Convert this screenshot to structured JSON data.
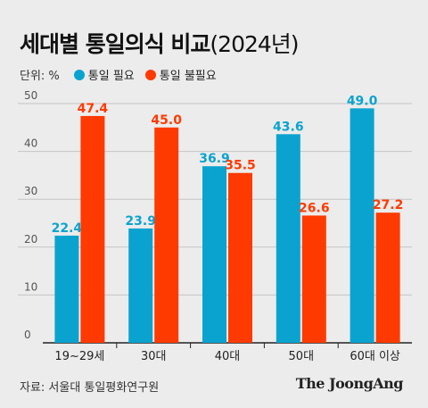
{
  "title": {
    "main": "세대별 통일의식 비교",
    "paren": "(2024년)"
  },
  "legend": {
    "unit": "단위: %"
  },
  "source": "자료: 서울대 통일평화연구원",
  "brand": "The JoongAng",
  "colors": {
    "series1": "#0aa3d0",
    "series2": "#ff3a00",
    "grid": "#c4c4c4",
    "axis": "#222222"
  },
  "chart_data": {
    "type": "bar",
    "categories": [
      "19~29세",
      "30대",
      "40대",
      "50대",
      "60대 이상"
    ],
    "series": [
      {
        "name": "통일 필요",
        "values": [
          22.4,
          23.9,
          36.9,
          43.6,
          49.0
        ],
        "labels": [
          "22.4",
          "23.9",
          "36.9",
          "43.6",
          "49.0"
        ]
      },
      {
        "name": "통일 불필요",
        "values": [
          47.4,
          45.0,
          35.5,
          26.6,
          27.2
        ],
        "labels": [
          "47.4",
          "45.0",
          "35.5",
          "26.6",
          "27.2"
        ]
      }
    ],
    "yticks": [
      0,
      10,
      20,
      30,
      40,
      50
    ],
    "ylim": [
      0,
      50
    ],
    "grid": true,
    "legend_position": "top-left"
  }
}
